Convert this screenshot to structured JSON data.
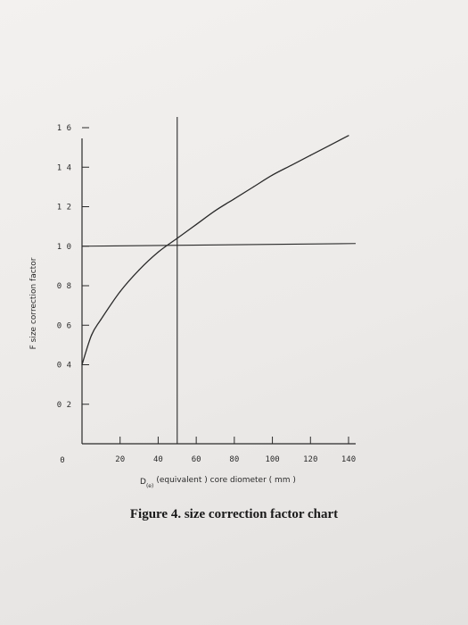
{
  "chart_data": {
    "type": "line",
    "series": [
      {
        "x": [
          0,
          5,
          10,
          20,
          30,
          40,
          50,
          60,
          70,
          80,
          90,
          100,
          110,
          120,
          130,
          140
        ],
        "y": [
          0.4,
          0.55,
          0.63,
          0.77,
          0.88,
          0.97,
          1.04,
          1.11,
          1.18,
          1.24,
          1.3,
          1.36,
          1.41,
          1.46,
          1.51,
          1.56
        ]
      }
    ],
    "reference_lines": {
      "vertical_x": 50,
      "horizontal_y": 1.0
    },
    "xlim": [
      0,
      140
    ],
    "ylim": [
      0,
      1.6
    ],
    "x_ticks": [
      20,
      40,
      60,
      80,
      100,
      120,
      140
    ],
    "x_tick_labels": [
      "20",
      "40",
      "60",
      "80",
      "100",
      "120",
      "140"
    ],
    "y_ticks": [
      0.2,
      0.4,
      0.6,
      0.8,
      1.0,
      1.2,
      1.4,
      1.6
    ],
    "y_tick_labels": [
      "0 2",
      "0 4",
      "0 6",
      "0 8",
      "1 0",
      "1 2",
      "1 4",
      "1 6"
    ],
    "origin_label": "0",
    "xlabel": "D(e) (equivalent ) core diometer ( mm )",
    "xlabel_main": "D",
    "xlabel_sub": "(e)",
    "xlabel_rest": "(equivalent ) core diometer ( mm )",
    "ylabel": "F size correction factor",
    "caption": "Figure 4. size correction factor chart",
    "line_color": "#2a2a2a",
    "grid": false
  }
}
